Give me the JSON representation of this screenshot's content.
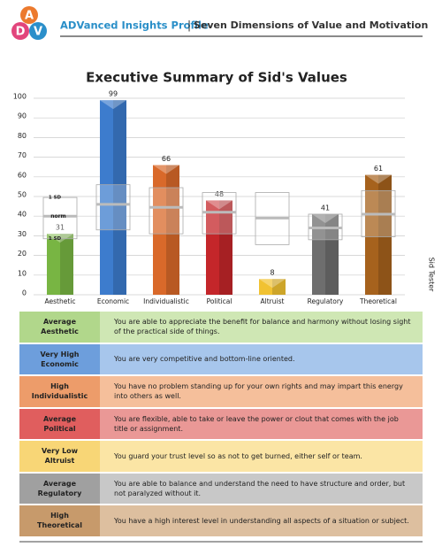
{
  "header": {
    "logo": [
      "A",
      "D",
      "V"
    ],
    "brand": "ADVanced Insights Profile",
    "separator": "|",
    "subtitle": "Seven Dimensions of Value and Motivation"
  },
  "side_label": "Sid Tester",
  "chart_data": {
    "type": "bar",
    "title": "Executive Summary of Sid's Values",
    "categories": [
      "Aesthetic",
      "Economic",
      "Individualistic",
      "Political",
      "Altruist",
      "Regulatory",
      "Theoretical"
    ],
    "values": [
      31,
      99,
      66,
      48,
      8,
      41,
      61
    ],
    "colors": [
      "#78b543",
      "#3d7ccd",
      "#d9692a",
      "#c4262a",
      "#f1c232",
      "#6e6e6e",
      "#a6621d"
    ],
    "norm": [
      40,
      46,
      44.5,
      42,
      39,
      34,
      41
    ],
    "sd_upper": [
      49.5,
      56,
      54.5,
      52,
      52,
      41,
      53
    ],
    "sd_lower": [
      28.5,
      33,
      31,
      31,
      25.5,
      28,
      29.5
    ],
    "band_labels": [
      "1 SD",
      "norm",
      "1 SD"
    ],
    "ylim": [
      0,
      100
    ],
    "yticks": [
      0,
      10,
      20,
      30,
      40,
      50,
      60,
      70,
      80,
      90,
      100
    ],
    "grid": true
  },
  "table": {
    "rows": [
      [
        "Average",
        "Aesthetic",
        "You are able to appreciate the benefit for balance and harmony without losing sight of the practical side of things."
      ],
      [
        "Very High",
        "Economic",
        "You are very competitive and bottom-line oriented."
      ],
      [
        "High",
        "Individualistic",
        "You have no problem standing up for your own rights and may impart this energy into others as well."
      ],
      [
        "Average",
        "Political",
        "You are flexible, able to take or leave the power or clout that comes with the job title or assignment."
      ],
      [
        "Very Low",
        "Altruist",
        "You guard your trust level so as not to get burned, either self or team."
      ],
      [
        "Average",
        "Regulatory",
        "You are able to balance and understand the need to have structure and order, but not paralyzed without it."
      ],
      [
        "High",
        "Theoretical",
        "You have a high interest level in understanding all aspects of a situation or subject."
      ]
    ]
  }
}
